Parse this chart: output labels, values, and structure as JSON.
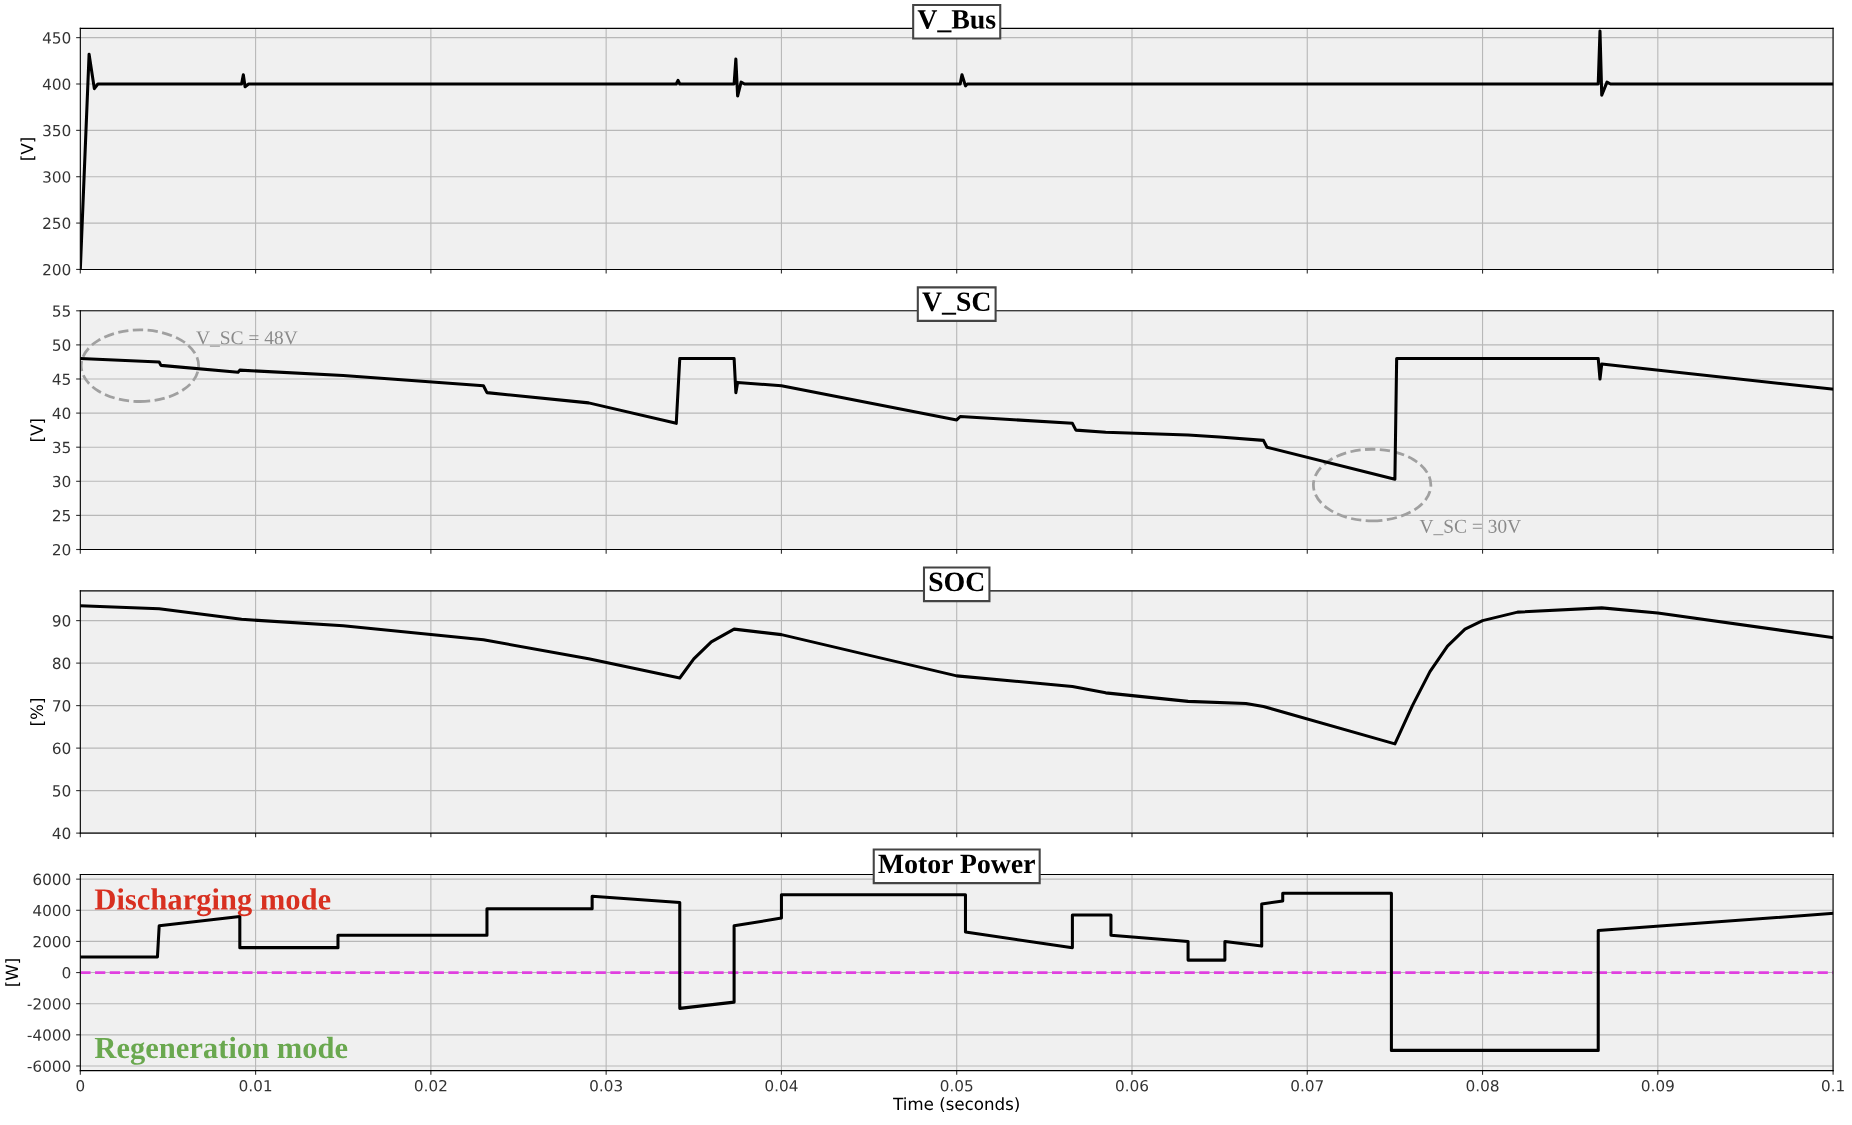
{
  "chart_data": [
    {
      "type": "line",
      "title": "V_Bus",
      "ylabel": "[V]",
      "xlim": [
        0,
        0.1
      ],
      "xticks": [
        0,
        0.01,
        0.02,
        0.03,
        0.04,
        0.05,
        0.06,
        0.07,
        0.08,
        0.09,
        0.1
      ],
      "ylim": [
        200,
        460
      ],
      "yticks": [
        200,
        250,
        300,
        350,
        400,
        450
      ],
      "grid": true,
      "tick_labels": "y",
      "series": [
        {
          "color": "#000000",
          "x": [
            0,
            0.0005,
            0.0008,
            0.001,
            0.0092,
            0.0093,
            0.0094,
            0.0096,
            0.034,
            0.0341,
            0.0342,
            0.0373,
            0.0374,
            0.0375,
            0.0377,
            0.0379,
            0.0502,
            0.0503,
            0.0505,
            0.0506,
            0.075,
            0.0866,
            0.0867,
            0.0868,
            0.0871,
            0.0873,
            0.1
          ],
          "values": [
            200,
            432,
            395,
            400,
            400,
            410,
            397,
            400,
            400,
            404,
            400,
            400,
            427,
            387,
            402,
            400,
            400,
            410,
            398,
            400,
            400,
            400,
            457,
            388,
            402,
            400,
            400
          ]
        }
      ]
    },
    {
      "type": "line",
      "title": "V_SC",
      "ylabel": "[V]",
      "xlim": [
        0,
        0.1
      ],
      "xticks": [
        0,
        0.01,
        0.02,
        0.03,
        0.04,
        0.05,
        0.06,
        0.07,
        0.08,
        0.09,
        0.1
      ],
      "ylim": [
        20,
        55
      ],
      "yticks": [
        20,
        25,
        30,
        35,
        40,
        45,
        50,
        55
      ],
      "grid": true,
      "tick_labels": "y",
      "annotations": [
        "V_SC = 48V",
        "V_SC = 30V"
      ],
      "series": [
        {
          "color": "#000000",
          "x": [
            0,
            0.0045,
            0.0046,
            0.009,
            0.0091,
            0.015,
            0.023,
            0.0232,
            0.029,
            0.034,
            0.0342,
            0.0373,
            0.0374,
            0.0375,
            0.04,
            0.05,
            0.0502,
            0.0566,
            0.0568,
            0.0585,
            0.0632,
            0.065,
            0.0675,
            0.0677,
            0.075,
            0.0751,
            0.0866,
            0.0867,
            0.0868,
            0.1
          ],
          "values": [
            48,
            47.5,
            47,
            46,
            46.3,
            45.5,
            44,
            43,
            41.5,
            38.5,
            48,
            48,
            43,
            44.5,
            44,
            39,
            39.5,
            38.5,
            37.5,
            37.2,
            36.8,
            36.5,
            36,
            35,
            30.3,
            48,
            48,
            45,
            47.2,
            43.5
          ]
        }
      ]
    },
    {
      "type": "line",
      "title": "SOC",
      "ylabel": "[%]",
      "xlim": [
        0,
        0.1
      ],
      "xticks": [
        0,
        0.01,
        0.02,
        0.03,
        0.04,
        0.05,
        0.06,
        0.07,
        0.08,
        0.09,
        0.1
      ],
      "ylim": [
        40,
        97
      ],
      "yticks": [
        40,
        50,
        60,
        70,
        80,
        90
      ],
      "grid": true,
      "tick_labels": "y",
      "series": [
        {
          "color": "#000000",
          "x": [
            0,
            0.0045,
            0.0092,
            0.015,
            0.023,
            0.029,
            0.0342,
            0.035,
            0.036,
            0.0373,
            0.04,
            0.05,
            0.0566,
            0.0585,
            0.0632,
            0.0665,
            0.0675,
            0.075,
            0.076,
            0.077,
            0.078,
            0.079,
            0.08,
            0.082,
            0.0868,
            0.09,
            0.1
          ],
          "values": [
            93.5,
            92.8,
            90.3,
            88.8,
            85.5,
            81,
            76.5,
            81,
            85,
            88,
            86.7,
            77,
            74.5,
            73,
            71,
            70.5,
            69.8,
            61,
            70,
            78,
            84,
            88,
            90,
            92,
            93,
            91.8,
            86
          ]
        }
      ]
    },
    {
      "type": "step",
      "title": "Motor Power",
      "ylabel": "[W]",
      "xlabel": "Time (seconds)",
      "xlim": [
        0,
        0.1
      ],
      "xticks": [
        0,
        0.01,
        0.02,
        0.03,
        0.04,
        0.05,
        0.06,
        0.07,
        0.08,
        0.09,
        0.1
      ],
      "ylim": [
        -6300,
        6300
      ],
      "yticks": [
        -6000,
        -4000,
        -2000,
        0,
        2000,
        4000,
        6000
      ],
      "grid": true,
      "annotations": [
        "Discharging mode",
        "Regeneration mode"
      ],
      "ref_lines": [
        {
          "axis": "y",
          "value": 0,
          "color": "#e040e0",
          "line_style": "dashed"
        }
      ],
      "series": [
        {
          "type": "line",
          "color": "#000000",
          "x": [
            0,
            0.0044,
            0.0045,
            0.0091,
            0.0091,
            0.0147,
            0.0147,
            0.0232,
            0.0232,
            0.0292,
            0.0292,
            0.0342,
            0.0342,
            0.0373,
            0.0373,
            0.04,
            0.04,
            0.0505,
            0.0505,
            0.0566,
            0.0566,
            0.0588,
            0.0588,
            0.0632,
            0.0632,
            0.0653,
            0.0653,
            0.0674,
            0.0674,
            0.0686,
            0.0686,
            0.0748,
            0.0748,
            0.0866,
            0.0866,
            0.1
          ],
          "values": [
            1000,
            1000,
            3000,
            3600,
            1600,
            1600,
            2400,
            2400,
            4100,
            4100,
            4900,
            4500,
            -2300,
            -1900,
            3000,
            3500,
            5000,
            5000,
            2600,
            1600,
            3700,
            3700,
            2400,
            2000,
            800,
            800,
            2000,
            1700,
            4400,
            4600,
            5100,
            5100,
            -5000,
            -5000,
            2700,
            3800
          ]
        }
      ]
    }
  ]
}
